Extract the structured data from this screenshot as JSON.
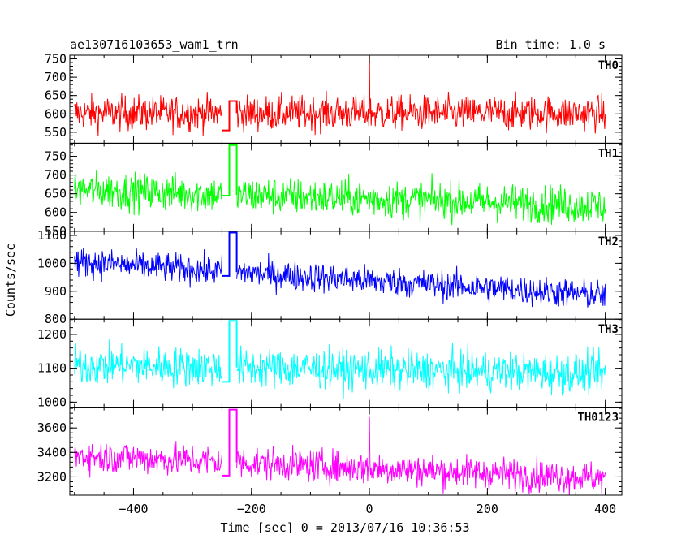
{
  "header": {
    "title": "ae130716103653_wam1_trn",
    "bin_time": "Bin time: 1.0 s"
  },
  "chart_data": {
    "type": "line",
    "xlabel": "Time [sec] 0 = 2013/07/16 10:36:53",
    "ylabel": "Counts/sec",
    "xlim": [
      -508,
      428
    ],
    "xticks": [
      -400,
      -200,
      0,
      200,
      400
    ],
    "xtick_labels": [
      "−400",
      "−200",
      "0",
      "200",
      "400"
    ],
    "grid": false,
    "gap": [
      -250,
      -225
    ],
    "panels": [
      {
        "name": "TH0",
        "color": "#ff0000",
        "ylim": [
          520,
          760
        ],
        "yticks": [
          550,
          600,
          650,
          700,
          750
        ],
        "series": {
          "x_range": [
            -500,
            400
          ],
          "start": 602,
          "end": 602,
          "noise": 34,
          "gap_low": 555,
          "gap_high": 635
        },
        "spike": {
          "x": 0,
          "y": 760
        }
      },
      {
        "name": "TH1",
        "color": "#00ff00",
        "ylim": [
          550,
          785
        ],
        "yticks": [
          550,
          600,
          650,
          700,
          750
        ],
        "series": {
          "x_range": [
            -500,
            400
          ],
          "start": 660,
          "end": 618,
          "noise": 36,
          "gap_low": 645,
          "gap_high": 780
        }
      },
      {
        "name": "TH2",
        "color": "#0000ff",
        "ylim": [
          800,
          1115
        ],
        "yticks": [
          800,
          900,
          1000,
          1100
        ],
        "series": {
          "x_range": [
            -500,
            400
          ],
          "start": 1005,
          "end": 885,
          "noise": 38,
          "gap_low": 955,
          "gap_high": 1110
        }
      },
      {
        "name": "TH3",
        "color": "#00ffff",
        "ylim": [
          985,
          1245
        ],
        "yticks": [
          1000,
          1100,
          1200
        ],
        "series": {
          "x_range": [
            -500,
            400
          ],
          "start": 1110,
          "end": 1085,
          "noise": 42,
          "gap_low": 1060,
          "gap_high": 1240
        }
      },
      {
        "name": "TH0123",
        "color": "#ff00ff",
        "ylim": [
          3050,
          3770
        ],
        "yticks": [
          3200,
          3400,
          3600
        ],
        "series": {
          "x_range": [
            -500,
            400
          ],
          "start": 3375,
          "end": 3190,
          "noise": 95,
          "gap_low": 3210,
          "gap_high": 3750
        },
        "spike": {
          "x": 0,
          "y": 3690
        }
      }
    ]
  }
}
